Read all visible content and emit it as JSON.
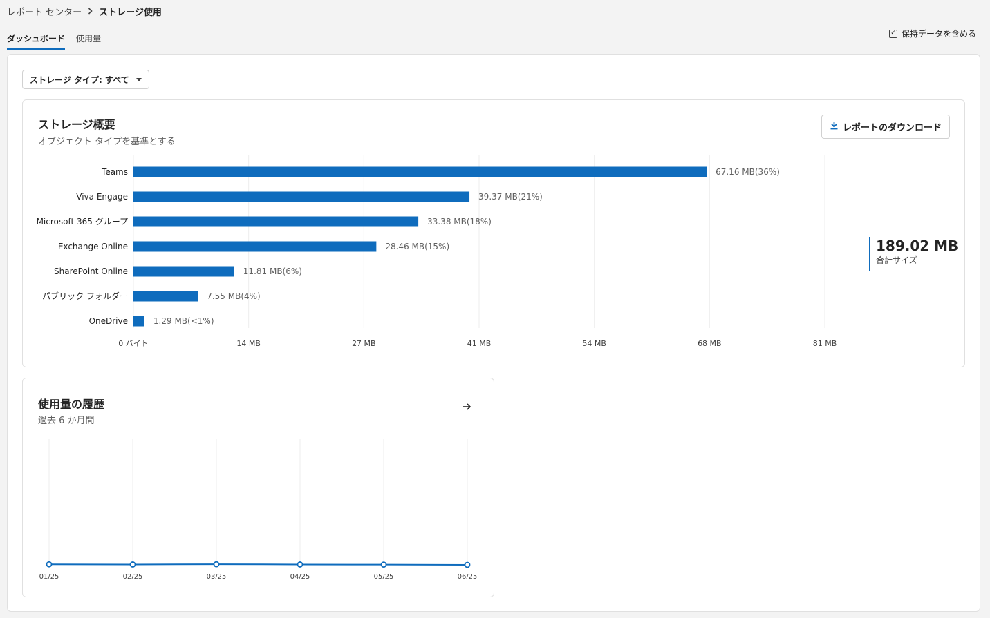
{
  "breadcrumb": {
    "parent": "レポート センター",
    "current": "ストレージ使用"
  },
  "tabs": [
    {
      "label": "ダッシュボード",
      "active": true
    },
    {
      "label": "使用量",
      "active": false
    }
  ],
  "retain_data": {
    "label": "保持データを含める",
    "checked": true
  },
  "filter": {
    "label": "ストレージ タイプ: すべて"
  },
  "overview": {
    "title": "ストレージ概要",
    "subtitle": "オブジェクト タイプを基準とする",
    "download_label": "レポートのダウンロード",
    "total_value": "189.02 MB",
    "total_label": "合計サイズ"
  },
  "history": {
    "title": "使用量の履歴",
    "subtitle": "過去 6 か月間"
  },
  "colors": {
    "accent": "#0f6cbd",
    "bar": "#0f6cbd"
  },
  "chart_data": [
    {
      "type": "bar",
      "orientation": "horizontal",
      "categories": [
        "Teams",
        "Viva Engage",
        "Microsoft 365 グループ",
        "Exchange Online",
        "SharePoint Online",
        "パブリック フォルダー",
        "OneDrive"
      ],
      "values": [
        67.16,
        39.37,
        33.38,
        28.46,
        11.81,
        7.55,
        1.29
      ],
      "data_labels": [
        "67.16 MB(36%)",
        "39.37 MB(21%)",
        "33.38 MB(18%)",
        "28.46 MB(15%)",
        "11.81 MB(6%)",
        "7.55 MB(4%)",
        "1.29 MB(<1%)"
      ],
      "unit": "MB",
      "xlim": [
        0,
        81
      ],
      "xticks": [
        0,
        13.5,
        27,
        40.5,
        54,
        67.5,
        81
      ],
      "xtick_labels": [
        "0 バイト",
        "14 MB",
        "27 MB",
        "41 MB",
        "54 MB",
        "68 MB",
        "81 MB"
      ],
      "grid": true
    },
    {
      "type": "line",
      "x": [
        "01/25",
        "02/25",
        "03/25",
        "04/25",
        "05/25",
        "06/25"
      ],
      "series": [
        {
          "values": [
            0.4,
            0.3,
            0.5,
            0.3,
            0.2,
            0.0
          ]
        }
      ],
      "ylim": [
        0,
        100
      ],
      "grid": true
    }
  ]
}
